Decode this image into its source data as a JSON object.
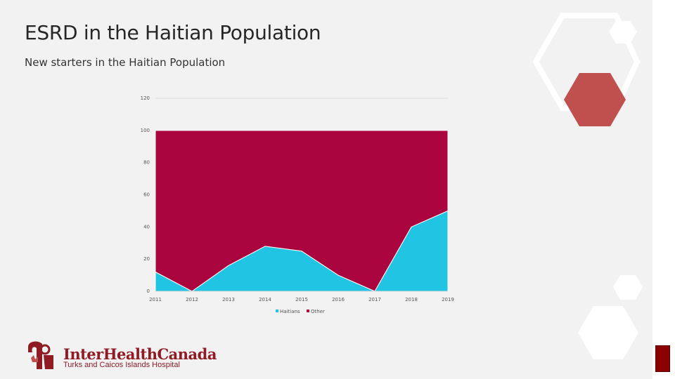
{
  "slide": {
    "title": "ESRD in the Haitian Population",
    "subtitle": "New starters in the Haitian Population"
  },
  "logo": {
    "name": "InterHealthCanada",
    "tagline": "Turks and Caicos Islands Hospital"
  },
  "colors": {
    "haitians": "#22c4e4",
    "other": "#ab0540",
    "accent_red": "#c0504d",
    "dark_red": "#8b0000"
  },
  "chart_data": {
    "type": "area",
    "stacked": true,
    "categories": [
      "2011",
      "2012",
      "2013",
      "2014",
      "2015",
      "2016",
      "2017",
      "2018",
      "2019"
    ],
    "series": [
      {
        "name": "Haitians",
        "values": [
          12,
          0,
          16,
          28,
          25,
          10,
          0,
          40,
          50
        ]
      },
      {
        "name": "Other",
        "values": [
          88,
          100,
          84,
          72,
          75,
          90,
          100,
          60,
          50
        ]
      }
    ],
    "ylim": [
      0,
      120
    ],
    "yticks": [
      0,
      20,
      40,
      60,
      80,
      100,
      120
    ],
    "grid": true,
    "legend": "bottom"
  }
}
